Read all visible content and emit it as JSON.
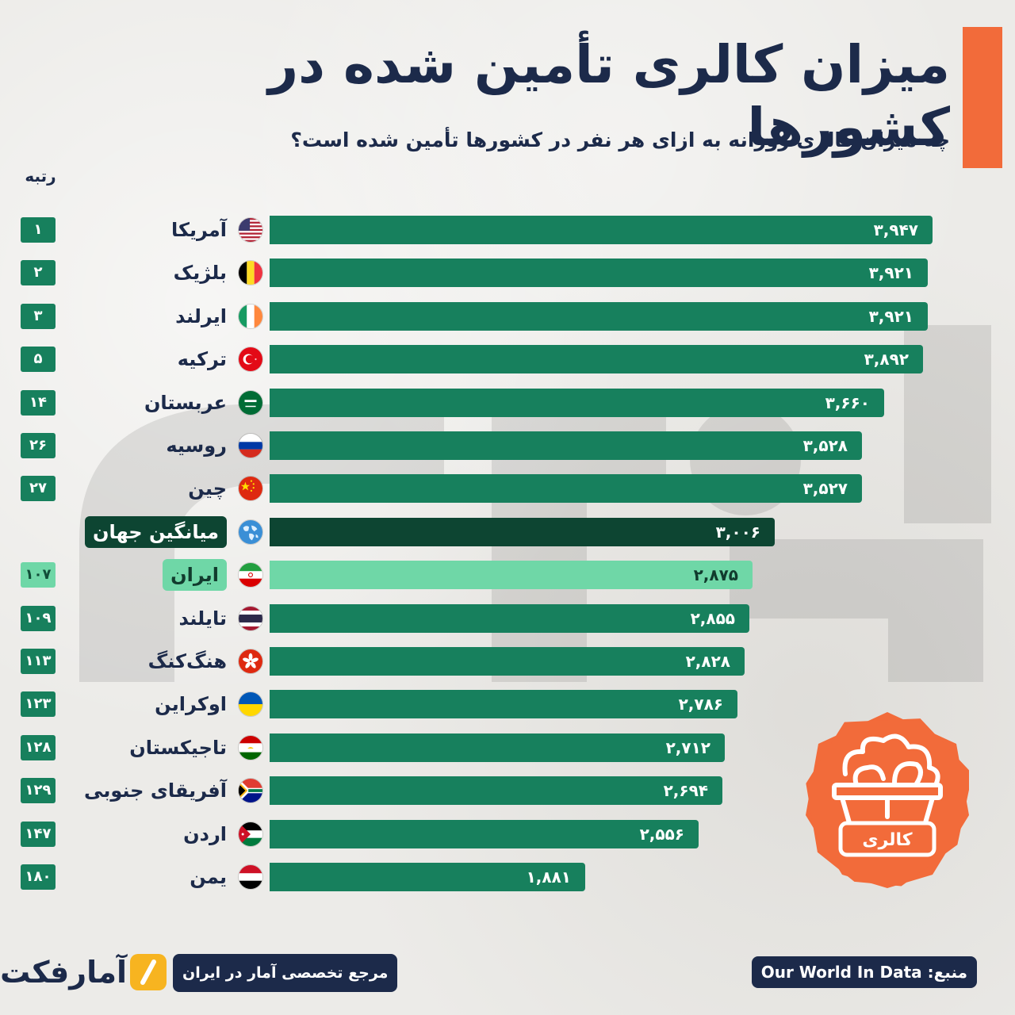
{
  "header": {
    "title": "میزان کالری تأمین شده در کشورها",
    "subtitle": "چه میزان کالری روزانه به ازای هر نفر در کشورها تأمین شده است؟",
    "rank_label": "رتبه"
  },
  "colors": {
    "bar": "#17805d",
    "world_bar": "#0d4532",
    "iran_bar": "#6fd7a7",
    "accent": "#f26b3a",
    "navy": "#1c2a4a",
    "logo_yellow": "#f7b420"
  },
  "chart_data": {
    "type": "bar",
    "orientation": "horizontal",
    "title": "میزان کالری تأمین شده در کشورها",
    "subtitle": "چه میزان کالری روزانه به ازای هر نفر در کشورها تأمین شده است؟",
    "xlim": [
      0,
      3947
    ],
    "grid": false,
    "rows": [
      {
        "rank": "۱",
        "country": "آمریکا",
        "value": 3947,
        "label": "۳,۹۴۷",
        "flag": "us-flag-icon",
        "kind": "normal"
      },
      {
        "rank": "۲",
        "country": "بلژیک",
        "value": 3921,
        "label": "۳,۹۲۱",
        "flag": "belgium-flag-icon",
        "kind": "normal"
      },
      {
        "rank": "۳",
        "country": "ایرلند",
        "value": 3921,
        "label": "۳,۹۲۱",
        "flag": "ireland-flag-icon",
        "kind": "normal"
      },
      {
        "rank": "۵",
        "country": "ترکیه",
        "value": 3892,
        "label": "۳,۸۹۲",
        "flag": "turkey-flag-icon",
        "kind": "normal"
      },
      {
        "rank": "۱۴",
        "country": "عربستان",
        "value": 3660,
        "label": "۳,۶۶۰",
        "flag": "saudi-flag-icon",
        "kind": "normal"
      },
      {
        "rank": "۲۶",
        "country": "روسیه",
        "value": 3528,
        "label": "۳,۵۲۸",
        "flag": "russia-flag-icon",
        "kind": "normal"
      },
      {
        "rank": "۲۷",
        "country": "چین",
        "value": 3527,
        "label": "۳,۵۲۷",
        "flag": "china-flag-icon",
        "kind": "normal"
      },
      {
        "rank": "",
        "country": "میانگین جهان",
        "value": 3006,
        "label": "۳,۰۰۶",
        "flag": "globe-icon",
        "kind": "world"
      },
      {
        "rank": "۱۰۷",
        "country": "ایران",
        "value": 2875,
        "label": "۲,۸۷۵",
        "flag": "iran-flag-icon",
        "kind": "iran"
      },
      {
        "rank": "۱۰۹",
        "country": "تایلند",
        "value": 2855,
        "label": "۲,۸۵۵",
        "flag": "thailand-flag-icon",
        "kind": "normal"
      },
      {
        "rank": "۱۱۳",
        "country": "هنگ‌کنگ",
        "value": 2828,
        "label": "۲,۸۲۸",
        "flag": "hongkong-flag-icon",
        "kind": "normal"
      },
      {
        "rank": "۱۲۳",
        "country": "اوکراین",
        "value": 2786,
        "label": "۲,۷۸۶",
        "flag": "ukraine-flag-icon",
        "kind": "normal"
      },
      {
        "rank": "۱۲۸",
        "country": "تاجیکستان",
        "value": 2712,
        "label": "۲,۷۱۲",
        "flag": "tajikistan-flag-icon",
        "kind": "normal"
      },
      {
        "rank": "۱۲۹",
        "country": "آفریقای جنوبی",
        "value": 2694,
        "label": "۲,۶۹۴",
        "flag": "southafrica-flag-icon",
        "kind": "normal"
      },
      {
        "rank": "۱۴۷",
        "country": "اردن",
        "value": 2556,
        "label": "۲,۵۵۶",
        "flag": "jordan-flag-icon",
        "kind": "normal"
      },
      {
        "rank": "۱۸۰",
        "country": "یمن",
        "value": 1881,
        "label": "۱,۸۸۱",
        "flag": "yemen-flag-icon",
        "kind": "normal"
      }
    ]
  },
  "badge": {
    "label": "کالری",
    "icon": "food-basket-icon"
  },
  "footer": {
    "source": "منبع: Our World In Data",
    "reference": "مرجع تخصصی آمار در ایران",
    "logo_text": "آمارفکت"
  }
}
